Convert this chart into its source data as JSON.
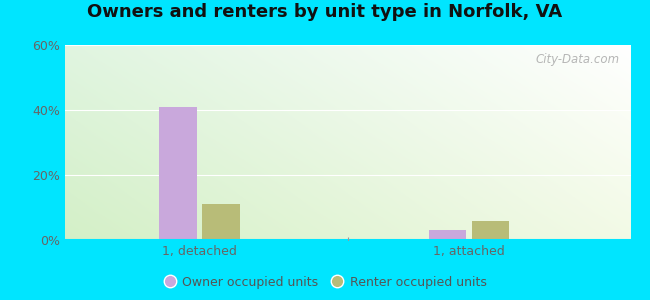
{
  "title": "Owners and renters by unit type in Norfolk, VA",
  "categories": [
    "1, detached",
    "1, attached"
  ],
  "owner_values": [
    41.0,
    3.0
  ],
  "renter_values": [
    11.0,
    6.0
  ],
  "owner_color": "#c9a8dc",
  "renter_color": "#b8bc78",
  "ylim": [
    0,
    60
  ],
  "yticks": [
    0,
    20,
    40,
    60
  ],
  "ytick_labels": [
    "0%",
    "20%",
    "40%",
    "60%"
  ],
  "legend_owner": "Owner occupied units",
  "legend_renter": "Renter occupied units",
  "background_color": "#00e5ff",
  "bar_width": 0.28,
  "group_positions": [
    1.0,
    3.0
  ],
  "xlim": [
    0.0,
    4.2
  ],
  "watermark": "City-Data.com",
  "title_fontsize": 13,
  "tick_fontsize": 9,
  "legend_fontsize": 9
}
